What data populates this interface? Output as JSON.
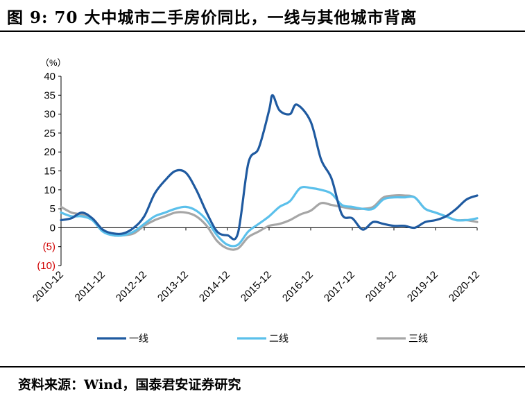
{
  "header": {
    "title": "图 9: 70 大中城市二手房价同比，一线与其他城市背离"
  },
  "footer": {
    "source": "资料来源：Wind，国泰君安证券研究"
  },
  "chart_data": {
    "type": "line",
    "unit_label": "（%）",
    "ylim": [
      -10,
      40
    ],
    "y_ticks": [
      40,
      35,
      30,
      25,
      20,
      15,
      10,
      5,
      0,
      -5,
      -10
    ],
    "y_tick_labels": [
      "40",
      "35",
      "30",
      "25",
      "20",
      "15",
      "10",
      "5",
      "0",
      "(5)",
      "(10)"
    ],
    "x_tick_labels": [
      "2010-12",
      "2011-12",
      "2012-12",
      "2013-12",
      "2014-12",
      "2015-12",
      "2016-12",
      "2017-12",
      "2018-12",
      "2019-12",
      "2020-12"
    ],
    "x_range": [
      "2010-12",
      "2020-12"
    ],
    "legend_position": "bottom",
    "grid": false,
    "series": [
      {
        "name": "一线",
        "color": "#1f5aa0",
        "points": [
          [
            "2010-12",
            2.0
          ],
          [
            "2011-03",
            2.5
          ],
          [
            "2011-06",
            4.0
          ],
          [
            "2011-09",
            2.5
          ],
          [
            "2011-12",
            -0.5
          ],
          [
            "2012-03",
            -1.5
          ],
          [
            "2012-06",
            -1.5
          ],
          [
            "2012-09",
            0.0
          ],
          [
            "2012-12",
            3.0
          ],
          [
            "2013-03",
            9.0
          ],
          [
            "2013-06",
            12.5
          ],
          [
            "2013-09",
            15.0
          ],
          [
            "2013-12",
            14.5
          ],
          [
            "2014-03",
            10.0
          ],
          [
            "2014-06",
            4.0
          ],
          [
            "2014-09",
            -1.0
          ],
          [
            "2014-12",
            -2.0
          ],
          [
            "2015-03",
            -1.5
          ],
          [
            "2015-06",
            17.0
          ],
          [
            "2015-09",
            21.0
          ],
          [
            "2015-12",
            31.0
          ],
          [
            "2016-01",
            35.0
          ],
          [
            "2016-03",
            31.0
          ],
          [
            "2016-06",
            30.0
          ],
          [
            "2016-08",
            32.5
          ],
          [
            "2016-12",
            28.0
          ],
          [
            "2017-03",
            18.0
          ],
          [
            "2017-06",
            13.0
          ],
          [
            "2017-09",
            3.5
          ],
          [
            "2017-12",
            2.5
          ],
          [
            "2018-03",
            -0.5
          ],
          [
            "2018-06",
            1.5
          ],
          [
            "2018-09",
            1.0
          ],
          [
            "2018-12",
            0.5
          ],
          [
            "2019-03",
            0.5
          ],
          [
            "2019-06",
            0.0
          ],
          [
            "2019-09",
            1.5
          ],
          [
            "2019-12",
            2.0
          ],
          [
            "2020-03",
            3.0
          ],
          [
            "2020-06",
            5.0
          ],
          [
            "2020-09",
            7.5
          ],
          [
            "2020-12",
            8.5
          ]
        ]
      },
      {
        "name": "二线",
        "color": "#5bc0eb",
        "points": [
          [
            "2010-12",
            4.0
          ],
          [
            "2011-03",
            3.0
          ],
          [
            "2011-06",
            3.0
          ],
          [
            "2011-09",
            2.0
          ],
          [
            "2011-12",
            -1.0
          ],
          [
            "2012-03",
            -2.0
          ],
          [
            "2012-06",
            -2.0
          ],
          [
            "2012-09",
            -1.0
          ],
          [
            "2012-12",
            1.0
          ],
          [
            "2013-03",
            3.0
          ],
          [
            "2013-06",
            4.0
          ],
          [
            "2013-09",
            5.0
          ],
          [
            "2013-12",
            5.5
          ],
          [
            "2014-03",
            4.5
          ],
          [
            "2014-06",
            2.0
          ],
          [
            "2014-09",
            -2.0
          ],
          [
            "2014-12",
            -4.5
          ],
          [
            "2015-03",
            -4.5
          ],
          [
            "2015-06",
            -1.0
          ],
          [
            "2015-09",
            1.0
          ],
          [
            "2015-12",
            3.0
          ],
          [
            "2016-03",
            5.5
          ],
          [
            "2016-06",
            7.0
          ],
          [
            "2016-09",
            10.5
          ],
          [
            "2016-12",
            10.5
          ],
          [
            "2017-03",
            10.0
          ],
          [
            "2017-06",
            9.0
          ],
          [
            "2017-09",
            6.0
          ],
          [
            "2017-12",
            5.5
          ],
          [
            "2018-03",
            5.0
          ],
          [
            "2018-06",
            5.0
          ],
          [
            "2018-09",
            7.5
          ],
          [
            "2018-12",
            8.0
          ],
          [
            "2019-03",
            8.0
          ],
          [
            "2019-06",
            8.0
          ],
          [
            "2019-09",
            5.0
          ],
          [
            "2019-12",
            4.0
          ],
          [
            "2020-03",
            3.0
          ],
          [
            "2020-06",
            2.0
          ],
          [
            "2020-09",
            2.0
          ],
          [
            "2020-12",
            2.5
          ]
        ]
      },
      {
        "name": "三线",
        "color": "#a6a6a6",
        "points": [
          [
            "2010-12",
            5.5
          ],
          [
            "2011-03",
            4.0
          ],
          [
            "2011-06",
            3.5
          ],
          [
            "2011-09",
            2.5
          ],
          [
            "2011-12",
            -0.5
          ],
          [
            "2012-03",
            -2.0
          ],
          [
            "2012-06",
            -2.0
          ],
          [
            "2012-09",
            -1.5
          ],
          [
            "2012-12",
            0.5
          ],
          [
            "2013-03",
            2.0
          ],
          [
            "2013-06",
            3.0
          ],
          [
            "2013-09",
            4.0
          ],
          [
            "2013-12",
            4.0
          ],
          [
            "2014-03",
            3.0
          ],
          [
            "2014-06",
            0.5
          ],
          [
            "2014-09",
            -3.5
          ],
          [
            "2014-12",
            -5.5
          ],
          [
            "2015-03",
            -5.5
          ],
          [
            "2015-06",
            -2.5
          ],
          [
            "2015-09",
            -1.0
          ],
          [
            "2015-12",
            0.5
          ],
          [
            "2016-03",
            1.0
          ],
          [
            "2016-06",
            2.0
          ],
          [
            "2016-09",
            3.5
          ],
          [
            "2016-12",
            4.5
          ],
          [
            "2017-03",
            6.5
          ],
          [
            "2017-06",
            6.0
          ],
          [
            "2017-09",
            5.5
          ],
          [
            "2017-12",
            5.0
          ],
          [
            "2018-03",
            5.0
          ],
          [
            "2018-06",
            5.5
          ],
          [
            "2018-09",
            8.0
          ],
          [
            "2018-12",
            8.5
          ],
          [
            "2019-03",
            8.5
          ],
          [
            "2019-06",
            8.0
          ],
          [
            "2019-09",
            5.0
          ],
          [
            "2019-12",
            4.0
          ],
          [
            "2020-03",
            3.0
          ],
          [
            "2020-06",
            2.0
          ],
          [
            "2020-09",
            2.0
          ],
          [
            "2020-12",
            1.5
          ]
        ]
      }
    ]
  }
}
